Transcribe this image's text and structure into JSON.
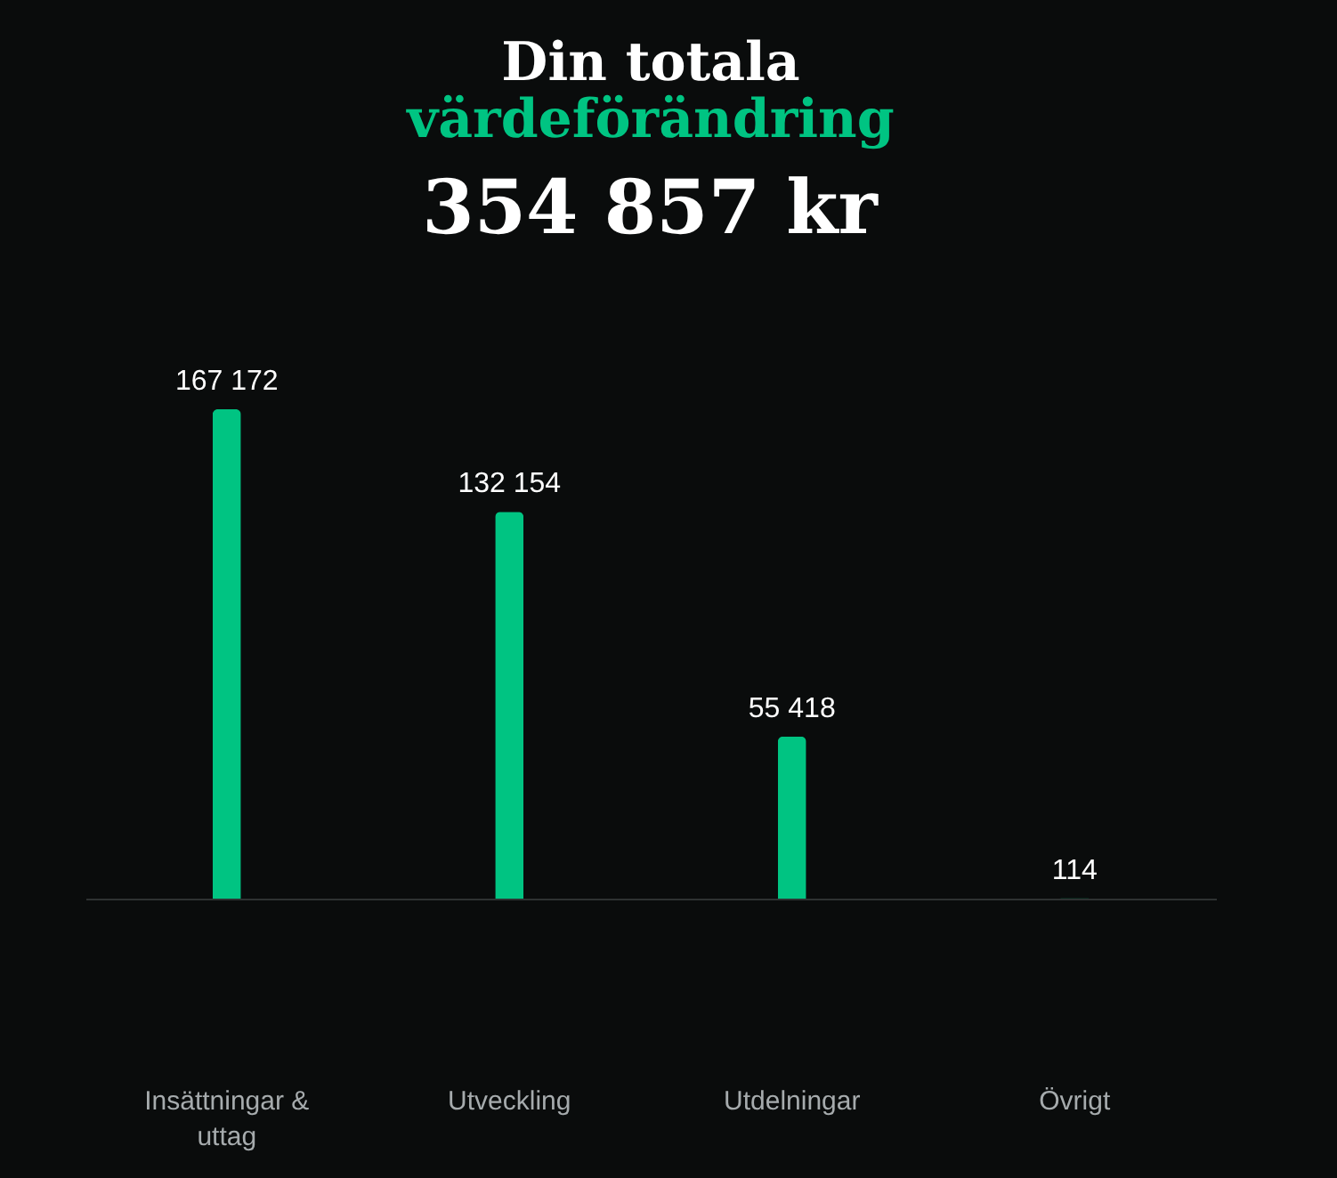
{
  "chart_data": {
    "type": "bar",
    "title": "Din totala",
    "subtitle": "värdeförändring",
    "annotations": [
      "354 857 kr"
    ],
    "categories": [
      "Insättningar & uttag",
      "Utveckling",
      "Utdelningar",
      "Övrigt"
    ],
    "values": [
      167172,
      132154,
      55418,
      114
    ],
    "value_labels": [
      "167 172",
      "132 154",
      "55 418",
      "114"
    ],
    "color": "#00c482",
    "grid": false
  }
}
